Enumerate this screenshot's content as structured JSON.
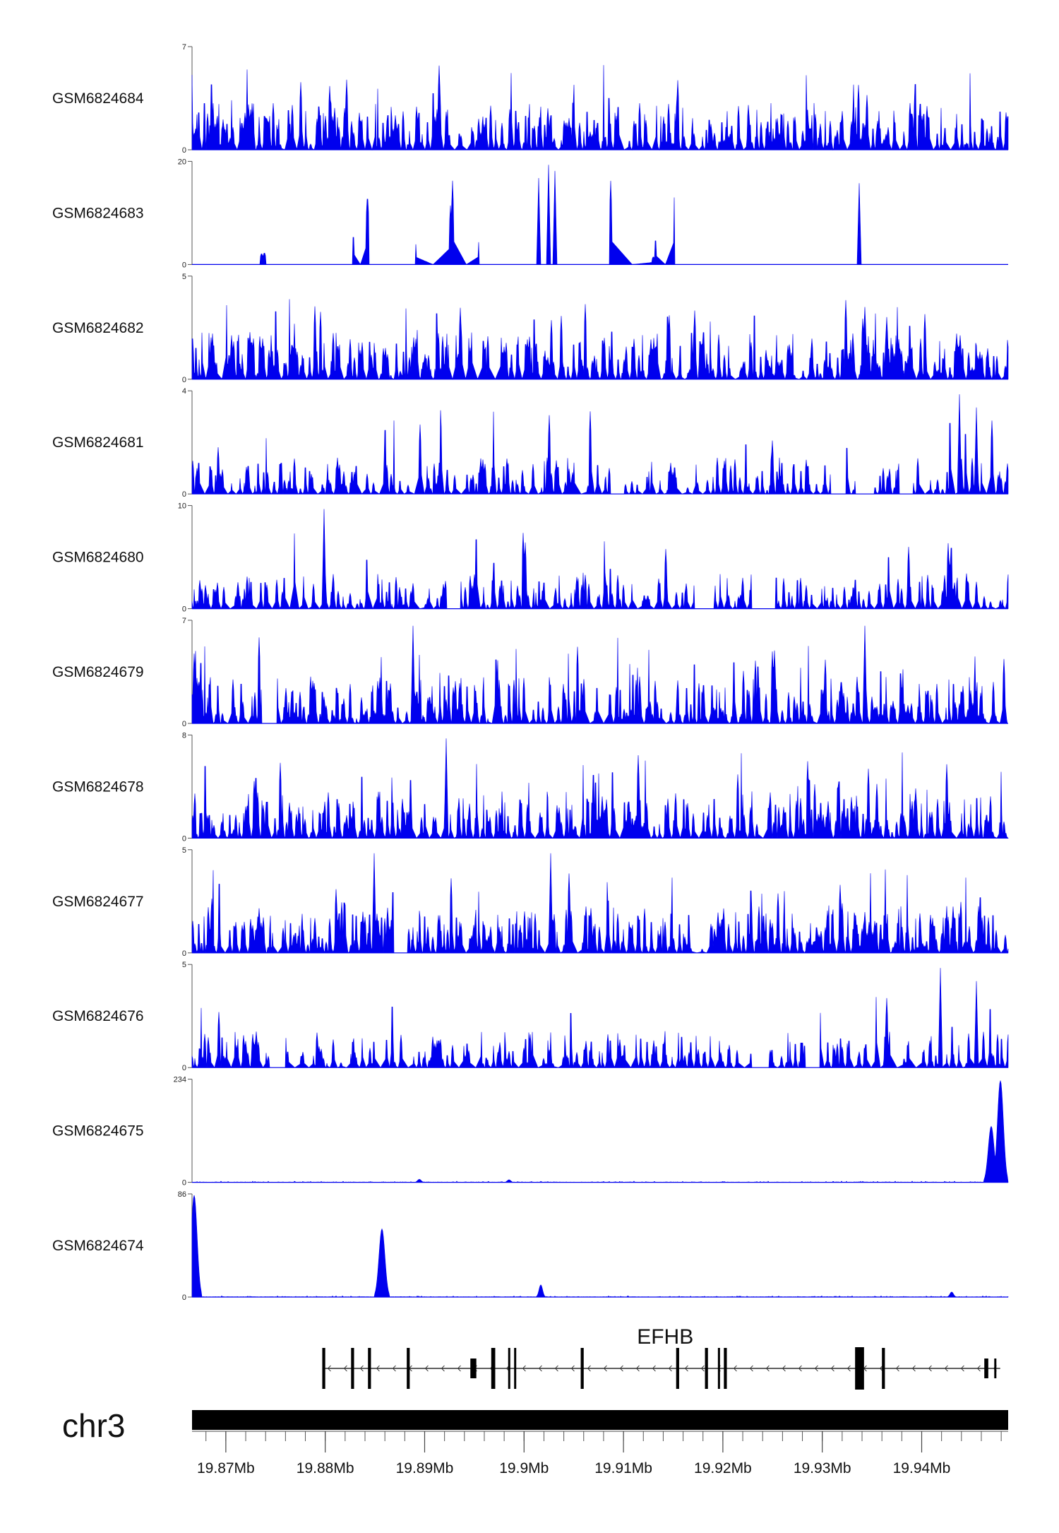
{
  "chart_data": {
    "type": "area",
    "chromosome": "chr3",
    "x_range_mb": [
      19.8666,
      19.9487
    ],
    "color": "#0000EE",
    "tracks": [
      {
        "name": "GSM6824684",
        "ymax": "7",
        "ymin": "0",
        "profile": "dense",
        "seed": 11,
        "peaks": []
      },
      {
        "name": "GSM6824683",
        "ymax": "20",
        "ymin": "0",
        "profile": "sparse",
        "seed": 23,
        "peaks": [
          [
            19.9015,
            0.85
          ],
          [
            19.9025,
            0.98
          ],
          [
            19.9031,
            0.92
          ],
          [
            19.9337,
            0.8
          ]
        ]
      },
      {
        "name": "GSM6824682",
        "ymax": "5",
        "ymin": "0",
        "profile": "dense",
        "seed": 37,
        "peaks": []
      },
      {
        "name": "GSM6824681",
        "ymax": "4",
        "ymin": "0",
        "profile": "medium",
        "seed": 41,
        "peaks": [
          [
            19.9438,
            0.98
          ],
          [
            19.9455,
            0.85
          ]
        ]
      },
      {
        "name": "GSM6824680",
        "ymax": "10",
        "ymin": "0",
        "profile": "medium",
        "seed": 53,
        "peaks": [
          [
            19.8799,
            0.98
          ]
        ]
      },
      {
        "name": "GSM6824679",
        "ymax": "7",
        "ymin": "0",
        "profile": "dense",
        "seed": 67,
        "peaks": [
          [
            19.8888,
            0.96
          ],
          [
            19.9343,
            0.96
          ]
        ]
      },
      {
        "name": "GSM6824678",
        "ymax": "8",
        "ymin": "0",
        "profile": "dense",
        "seed": 71,
        "peaks": [
          [
            19.8922,
            0.98
          ]
        ]
      },
      {
        "name": "GSM6824677",
        "ymax": "5",
        "ymin": "0",
        "profile": "dense",
        "seed": 83,
        "peaks": [
          [
            19.8849,
            0.98
          ],
          [
            19.9027,
            0.98
          ]
        ]
      },
      {
        "name": "GSM6824676",
        "ymax": "5",
        "ymin": "0",
        "profile": "medium",
        "seed": 97,
        "peaks": [
          [
            19.9419,
            0.98
          ],
          [
            19.9455,
            0.85
          ]
        ]
      },
      {
        "name": "GSM6824675",
        "ymax": "234",
        "ymin": "0",
        "profile": "flat",
        "seed": 101,
        "peaks": [
          [
            19.8895,
            0.03
          ],
          [
            19.8985,
            0.025
          ],
          [
            19.9479,
            1.0
          ],
          [
            19.947,
            0.55
          ]
        ]
      },
      {
        "name": "GSM6824674",
        "ymax": "86",
        "ymin": "0",
        "profile": "flat",
        "seed": 113,
        "peaks": [
          [
            19.8668,
            1.0
          ],
          [
            19.8857,
            0.67
          ],
          [
            19.9017,
            0.12
          ],
          [
            19.943,
            0.05
          ]
        ]
      }
    ],
    "gene": {
      "name": "EFHB",
      "strand": "-",
      "start_mb": 19.8797,
      "end_mb": 19.9479,
      "exons": [
        [
          19.8797,
          19.88,
          "tall"
        ],
        [
          19.8826,
          19.8829,
          "tall"
        ],
        [
          19.8843,
          19.8846,
          "tall"
        ],
        [
          19.8882,
          19.8885,
          "tall"
        ],
        [
          19.8946,
          19.8952,
          "medium"
        ],
        [
          19.8967,
          19.8971,
          "tall"
        ],
        [
          19.8984,
          19.8986,
          "tall"
        ],
        [
          19.899,
          19.8992,
          "tall"
        ],
        [
          19.9057,
          19.906,
          "tall"
        ],
        [
          19.9153,
          19.9156,
          "tall"
        ],
        [
          19.9182,
          19.9185,
          "tall"
        ],
        [
          19.9195,
          19.9197,
          "tall"
        ],
        [
          19.9201,
          19.9204,
          "tall"
        ],
        [
          19.9333,
          19.9342,
          "thick"
        ],
        [
          19.936,
          19.9363,
          "tall"
        ],
        [
          19.9463,
          19.9467,
          "medium"
        ],
        [
          19.9473,
          19.9475,
          "medium"
        ]
      ]
    },
    "axis": {
      "tick_labels": [
        "19.87Mb",
        "19.88Mb",
        "19.89Mb",
        "19.9Mb",
        "19.91Mb",
        "19.92Mb",
        "19.93Mb",
        "19.94Mb"
      ],
      "tick_values": [
        19.87,
        19.88,
        19.89,
        19.9,
        19.91,
        19.92,
        19.93,
        19.94
      ],
      "minor_step_mb": 0.002
    }
  }
}
